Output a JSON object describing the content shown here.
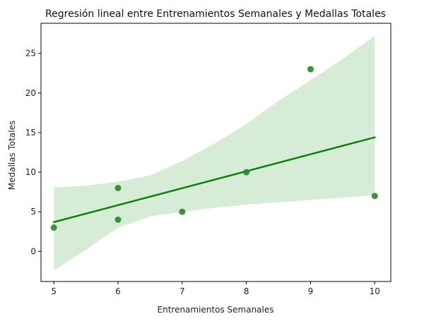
{
  "chart_data": {
    "type": "scatter",
    "title": "Regresión lineal entre Entrenamientos Semanales y Medallas Totales",
    "xlabel": "Entrenamientos Semanales",
    "ylabel": "Medallas Totales",
    "xlim": [
      4.8,
      10.25
    ],
    "ylim": [
      -3.8,
      28.8
    ],
    "xticks": [
      5,
      6,
      7,
      8,
      9,
      10
    ],
    "yticks": [
      0,
      5,
      10,
      15,
      20,
      25
    ],
    "grid": false,
    "colors": {
      "points": "#228b22",
      "line": "#008000",
      "band": "#d7ecd7"
    },
    "points": [
      {
        "x": 5,
        "y": 3
      },
      {
        "x": 6,
        "y": 8
      },
      {
        "x": 6,
        "y": 4
      },
      {
        "x": 7,
        "y": 5
      },
      {
        "x": 8,
        "y": 10
      },
      {
        "x": 9,
        "y": 23
      },
      {
        "x": 10,
        "y": 7
      }
    ],
    "regression_line": {
      "x": [
        5,
        10
      ],
      "y": [
        3.7,
        14.4
      ]
    },
    "confidence_band": {
      "x": [
        5.0,
        5.5,
        6.0,
        6.5,
        7.0,
        7.5,
        8.0,
        8.5,
        9.0,
        9.5,
        10.0
      ],
      "upper": [
        8.1,
        8.3,
        8.8,
        9.6,
        11.4,
        13.6,
        16.1,
        19.0,
        21.6,
        24.3,
        27.2
      ],
      "lower": [
        -2.4,
        0.2,
        3.0,
        4.4,
        5.0,
        5.5,
        5.9,
        6.2,
        6.5,
        6.8,
        7.1
      ]
    }
  }
}
